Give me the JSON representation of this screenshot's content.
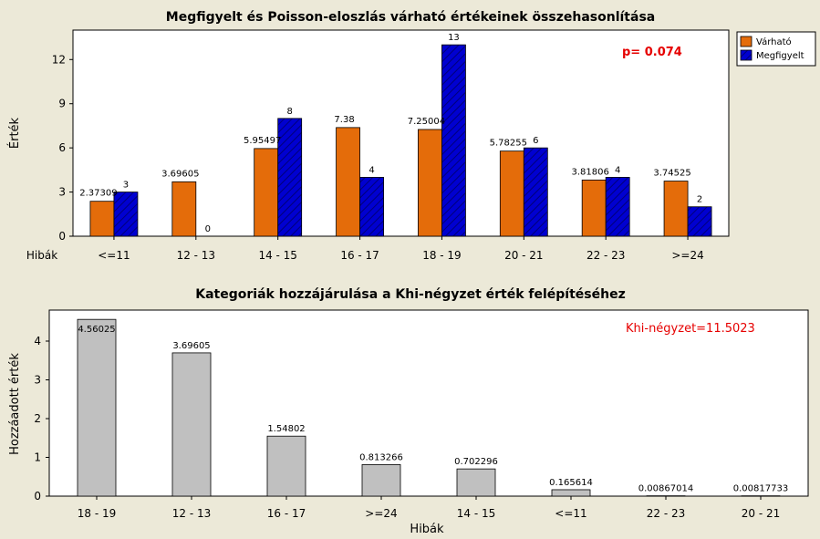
{
  "colors": {
    "background": "#ece9d8",
    "plot_bg": "#ffffff",
    "expected": "#e46c0a",
    "observed": "#0000d0",
    "contribution": "#c0c0c0",
    "stat_text": "#e60000"
  },
  "chart_data": [
    {
      "type": "bar",
      "title": "Megfigyelt és Poisson-eloszlás várható értékeinek összehasonlítása",
      "xlabel": "Hibák",
      "ylabel": "Érték",
      "categories": [
        "<=11",
        "12 - 13",
        "14 - 15",
        "16 - 17",
        "18 - 19",
        "20 - 21",
        "22 - 23",
        ">=24"
      ],
      "series": [
        {
          "name": "Várható",
          "values": [
            2.37309,
            3.69605,
            5.95497,
            7.38,
            7.25004,
            5.78255,
            3.81806,
            3.74525
          ],
          "labels": [
            "2.37309",
            "3.69605",
            "5.95497",
            "7.38",
            "7.25004",
            "5.78255",
            "3.81806",
            "3.74525"
          ]
        },
        {
          "name": "Megfigyelt",
          "values": [
            3,
            0,
            8,
            4,
            13,
            6,
            4,
            2
          ],
          "labels": [
            "3",
            "0",
            "8",
            "4",
            "13",
            "6",
            "4",
            "2"
          ]
        }
      ],
      "ylim": [
        0,
        14
      ],
      "yticks": [
        0,
        3,
        6,
        9,
        12
      ],
      "annotation": "p= 0.074",
      "legend": "outside top-right"
    },
    {
      "type": "bar",
      "title": "Kategoriák hozzájárulása a Khi-négyzet érték felépítéséhez",
      "xlabel": "Hibák",
      "ylabel": "Hozzáadott érték",
      "categories": [
        "18 - 19",
        "12 - 13",
        "16 - 17",
        ">=24",
        "14 - 15",
        "<=11",
        "22 - 23",
        "20 - 21"
      ],
      "values": [
        4.56025,
        3.69605,
        1.54802,
        0.813266,
        0.702296,
        0.165614,
        0.00867014,
        0.00817733
      ],
      "labels": [
        "4.56025",
        "3.69605",
        "1.54802",
        "0.813266",
        "0.702296",
        "0.165614",
        "0.00867014",
        "0.00817733"
      ],
      "ylim": [
        0,
        4.8
      ],
      "yticks": [
        0,
        1,
        2,
        3,
        4
      ],
      "annotation": "Khi-négyzet=11.5023"
    }
  ]
}
